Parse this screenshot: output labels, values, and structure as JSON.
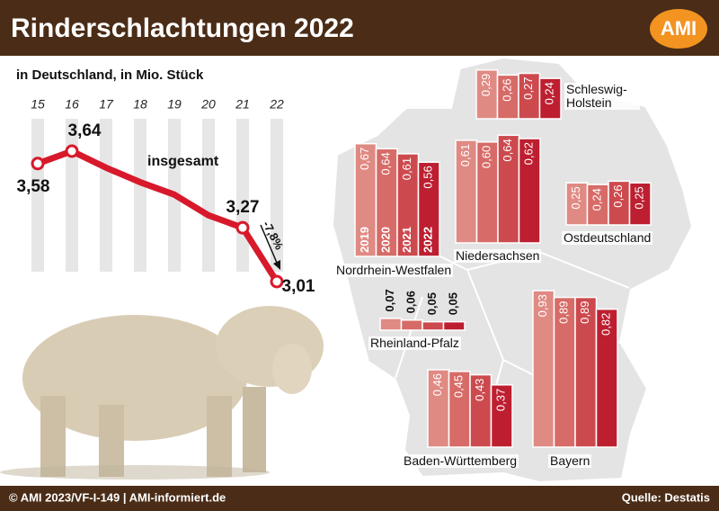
{
  "header": {
    "title": "Rinderschlachtungen 2022",
    "logo": "AMI"
  },
  "footer": {
    "left": "© AMI 2023/VF-I-149 | AMI-informiert.de",
    "right": "Quelle: Destatis"
  },
  "chart_data": [
    {
      "type": "line",
      "subtitle": "in Deutschland, in Mio. Stück",
      "categories": [
        "15",
        "16",
        "17",
        "18",
        "19",
        "20",
        "21",
        "22"
      ],
      "values": [
        3.58,
        3.64,
        3.56,
        3.49,
        3.43,
        3.33,
        3.27,
        3.01
      ],
      "value_labels": [
        "3,58",
        "3,64",
        null,
        null,
        null,
        null,
        "3,27",
        "3,01"
      ],
      "color": "#d7192b",
      "annotations": [
        "insgesamt",
        "-7,8%"
      ]
    },
    {
      "type": "bar",
      "title": "Schleswig-Holstein",
      "values": [
        0.29,
        0.26,
        0.27,
        0.24
      ],
      "value_labels": [
        "0,29",
        "0,26",
        "0,27",
        "0,24"
      ],
      "colors": [
        "#e08a84",
        "#d76b67",
        "#cc4a4e",
        "#bd1f30"
      ]
    },
    {
      "type": "bar",
      "title": "Nordrhein-Westfalen",
      "categories": [
        "2019",
        "2020",
        "2021",
        "2022"
      ],
      "values": [
        0.67,
        0.64,
        0.61,
        0.56
      ],
      "value_labels": [
        "0,67",
        "0,64",
        "0,61",
        "0,56"
      ],
      "colors": [
        "#e08a84",
        "#d76b67",
        "#cc4a4e",
        "#bd1f30"
      ]
    },
    {
      "type": "bar",
      "title": "Niedersachsen",
      "values": [
        0.61,
        0.6,
        0.64,
        0.62
      ],
      "value_labels": [
        "0,61",
        "0,60",
        "0,64",
        "0,62"
      ],
      "colors": [
        "#e08a84",
        "#d76b67",
        "#cc4a4e",
        "#bd1f30"
      ]
    },
    {
      "type": "bar",
      "title": "Ostdeutschland",
      "values": [
        0.25,
        0.24,
        0.26,
        0.25
      ],
      "value_labels": [
        "0,25",
        "0,24",
        "0,26",
        "0,25"
      ],
      "colors": [
        "#e08a84",
        "#d76b67",
        "#cc4a4e",
        "#bd1f30"
      ]
    },
    {
      "type": "bar",
      "title": "Rheinland-Pfalz",
      "values": [
        0.07,
        0.06,
        0.05,
        0.05
      ],
      "value_labels": [
        "0,07",
        "0,06",
        "0,05",
        "0,05"
      ],
      "colors": [
        "#e08a84",
        "#d76b67",
        "#cc4a4e",
        "#bd1f30"
      ]
    },
    {
      "type": "bar",
      "title": "Baden-Württemberg",
      "values": [
        0.46,
        0.45,
        0.43,
        0.37
      ],
      "value_labels": [
        "0,46",
        "0,45",
        "0,43",
        "0,37"
      ],
      "colors": [
        "#e08a84",
        "#d76b67",
        "#cc4a4e",
        "#bd1f30"
      ]
    },
    {
      "type": "bar",
      "title": "Bayern",
      "values": [
        0.93,
        0.89,
        0.89,
        0.82
      ],
      "value_labels": [
        "0,93",
        "0,89",
        "0,89",
        "0,82"
      ],
      "colors": [
        "#e08a84",
        "#d76b67",
        "#cc4a4e",
        "#bd1f30"
      ]
    }
  ]
}
